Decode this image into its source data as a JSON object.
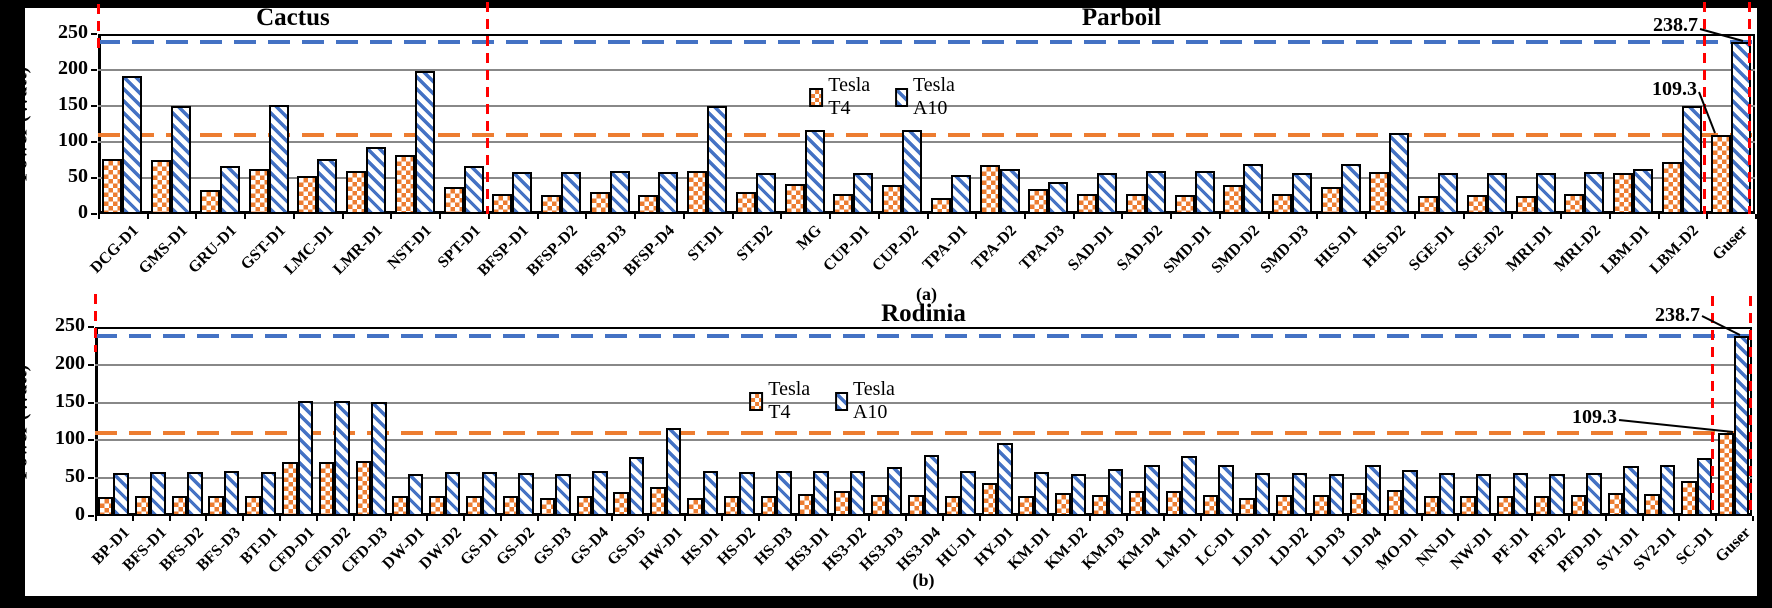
{
  "figure": {
    "ylabel": "Power (Watt)",
    "legend_entries": [
      "Tesla T4",
      "Tesla A10"
    ],
    "captions": [
      "(a)",
      "(b)"
    ],
    "colors": {
      "t4_orange": "#ED7D31",
      "a10_blue": "#4472C4",
      "red_marker": "#FF0000",
      "grid_gray": "#888888"
    }
  },
  "chart_data": [
    {
      "id": "a",
      "type": "bar",
      "caption": "(a)",
      "ylabel": "Power (Watt)",
      "ylim": [
        0,
        250
      ],
      "yticks": [
        0,
        50,
        100,
        150,
        200,
        250
      ],
      "grid": true,
      "legend": {
        "position": "inside-top",
        "entries": [
          "Tesla T4",
          "Tesla A10"
        ]
      },
      "sections": [
        {
          "label": "Cactus",
          "span": 8
        },
        {
          "label": "Parboil",
          "span": 26
        }
      ],
      "hlines": [
        {
          "value": 238.7,
          "series": "Tesla A10"
        },
        {
          "value": 109.3,
          "series": "Tesla T4"
        }
      ],
      "annotations": [
        {
          "text": "238.7",
          "target": "Guser Tesla A10"
        },
        {
          "text": "109.3",
          "target": "Guser Tesla T4"
        }
      ],
      "categories": [
        "DCG-D1",
        "GMS-D1",
        "GRU-D1",
        "GST-D1",
        "LMC-D1",
        "LMR-D1",
        "NST-D1",
        "SPT-D1",
        "BFSP-D1",
        "BFSP-D2",
        "BFSP-D3",
        "BFSP-D4",
        "ST-D1",
        "ST-D2",
        "MG",
        "CUP-D1",
        "CUP-D2",
        "TPA-D1",
        "TPA-D2",
        "TPA-D3",
        "SAD-D1",
        "SAD-D2",
        "SMD-D1",
        "SMD-D2",
        "SMD-D3",
        "HIS-D1",
        "HIS-D2",
        "SGE-D1",
        "SGE-D2",
        "MRI-D1",
        "MRI-D2",
        "LBM-D1",
        "LBM-D2",
        "Guser"
      ],
      "series": [
        {
          "name": "Tesla T4",
          "values": [
            76,
            75,
            33,
            63,
            53,
            60,
            82,
            37,
            28,
            27,
            30,
            27,
            60,
            30,
            42,
            28,
            40,
            22,
            68,
            35,
            28,
            28,
            27,
            40,
            28,
            37,
            58,
            25,
            27,
            25,
            28,
            57,
            72,
            109.3
          ]
        },
        {
          "name": "Tesla A10",
          "values": [
            192,
            150,
            67,
            152,
            77,
            93,
            199,
            66,
            58,
            58,
            60,
            58,
            150,
            57,
            117,
            57,
            116,
            54,
            62,
            44,
            57,
            60,
            60,
            70,
            57,
            70,
            112,
            57,
            57,
            57,
            58,
            62,
            150,
            238.7
          ]
        }
      ]
    },
    {
      "id": "b",
      "type": "bar",
      "caption": "(b)",
      "ylabel": "Power (Watt)",
      "ylim": [
        0,
        250
      ],
      "yticks": [
        0,
        50,
        100,
        150,
        200,
        250
      ],
      "grid": true,
      "legend": {
        "position": "inside-top",
        "entries": [
          "Tesla T4",
          "Tesla A10"
        ]
      },
      "sections": [
        {
          "label": "Rodinia",
          "span": 45
        }
      ],
      "hlines": [
        {
          "value": 238.7,
          "series": "Tesla A10"
        },
        {
          "value": 109.3,
          "series": "Tesla T4"
        }
      ],
      "annotations": [
        {
          "text": "238.7",
          "target": "Guser Tesla A10"
        },
        {
          "text": "109.3",
          "target": "Guser Tesla T4"
        }
      ],
      "categories": [
        "BP-D1",
        "BFS-D1",
        "BFS-D2",
        "BFS-D3",
        "BT-D1",
        "CFD-D1",
        "CFD-D2",
        "CFD-D3",
        "DW-D1",
        "DW-D2",
        "GS-D1",
        "GS-D2",
        "GS-D3",
        "GS-D4",
        "GS-D5",
        "HW-D1",
        "HS-D1",
        "HS-D2",
        "HS-D3",
        "HS3-D1",
        "HS3-D2",
        "HS3-D3",
        "HS3-D4",
        "HU-D1",
        "HY-D1",
        "KM-D1",
        "KM-D2",
        "KM-D3",
        "KM-D4",
        "LM-D1",
        "LC-D1",
        "LD-D1",
        "LD-D2",
        "LD-D3",
        "LD-D4",
        "MO-D1",
        "NN-D1",
        "NW-D1",
        "PF-D1",
        "PF-D2",
        "PFD-D1",
        "SV1-D1",
        "SV2-D1",
        "SC-D1",
        "Guser"
      ],
      "series": [
        {
          "name": "Tesla T4",
          "values": [
            25,
            27,
            27,
            27,
            27,
            71,
            72,
            73,
            27,
            27,
            27,
            26,
            24,
            27,
            32,
            38,
            24,
            27,
            27,
            29,
            33,
            28,
            28,
            27,
            44,
            26,
            30,
            28,
            33,
            33,
            28,
            24,
            28,
            28,
            30,
            35,
            27,
            27,
            27,
            27,
            28,
            31,
            29,
            46,
            109.3
          ]
        },
        {
          "name": "Tesla A10",
          "values": [
            57,
            58,
            58,
            59,
            58,
            152,
            152,
            151,
            56,
            58,
            58,
            57,
            56,
            60,
            78,
            117,
            60,
            58,
            60,
            59,
            60,
            65,
            81,
            59,
            97,
            58,
            55,
            62,
            68,
            79,
            67,
            57,
            57,
            55,
            67,
            61,
            57,
            56,
            57,
            55,
            57,
            66,
            67,
            77,
            238.7
          ]
        }
      ]
    }
  ]
}
